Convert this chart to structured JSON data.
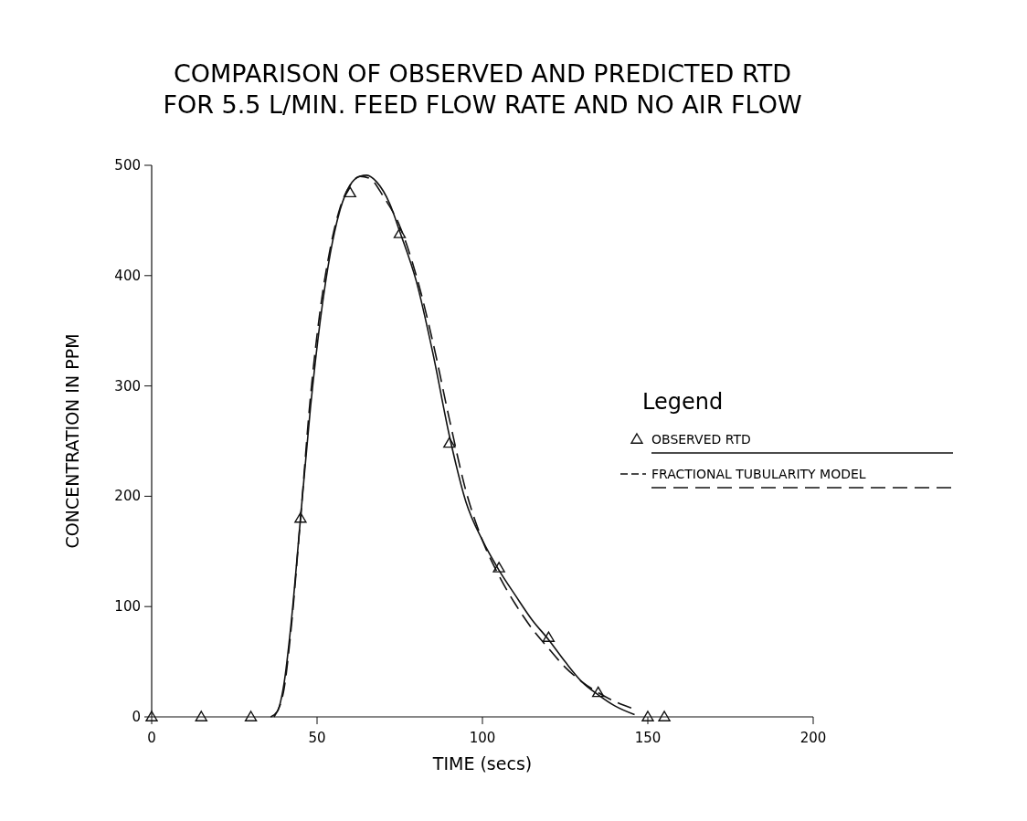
{
  "chart_data": {
    "type": "line",
    "title": "COMPARISON OF OBSERVED AND PREDICTED RTD\nFOR 5.5 L/MIN. FEED FLOW RATE AND NO AIR FLOW",
    "xlabel": "TIME (secs)",
    "ylabel": "CONCENTRATION IN PPM",
    "legend_title": "Legend",
    "legend": "right",
    "xlim": [
      0,
      200
    ],
    "ylim": [
      0,
      500
    ],
    "xticks": [
      0,
      50,
      100,
      150,
      200
    ],
    "yticks": [
      0,
      100,
      200,
      300,
      400,
      500
    ],
    "grid": false,
    "series": [
      {
        "type": "scatter",
        "marker": "triangle",
        "color": "#111111",
        "x": [
          0,
          15,
          30,
          45,
          60,
          75,
          90,
          105,
          120,
          135,
          150,
          155
        ],
        "values": [
          0,
          0,
          0,
          180,
          475,
          438,
          248,
          135,
          72,
          22,
          0,
          0
        ]
      },
      {
        "name": "OBSERVED RTD",
        "type": "line",
        "line_style": "solid",
        "marker": "none",
        "color": "#111111",
        "x": [
          36,
          38,
          40,
          42,
          45,
          48,
          51,
          54,
          57,
          60,
          63,
          65,
          68,
          72,
          75,
          80,
          85,
          90,
          95,
          100,
          105,
          110,
          115,
          120,
          125,
          130,
          135,
          140,
          146
        ],
        "values": [
          0,
          5,
          30,
          80,
          180,
          280,
          360,
          420,
          460,
          482,
          490,
          491,
          485,
          465,
          440,
          395,
          330,
          255,
          195,
          160,
          133,
          110,
          88,
          70,
          50,
          32,
          20,
          10,
          2
        ]
      },
      {
        "name": "FRACTIONAL TUBULARITY MODEL",
        "type": "line",
        "line_style": "dashed",
        "marker": "none",
        "color": "#111111",
        "x": [
          37,
          40,
          42,
          45,
          48,
          51,
          54,
          57,
          60,
          63,
          66,
          70,
          75,
          80,
          85,
          90,
          95,
          100,
          105,
          110,
          115,
          120,
          125,
          130,
          135,
          140,
          145
        ],
        "values": [
          0,
          25,
          75,
          180,
          290,
          370,
          425,
          462,
          482,
          490,
          488,
          472,
          445,
          400,
          340,
          270,
          205,
          160,
          128,
          102,
          80,
          62,
          45,
          32,
          22,
          14,
          8
        ]
      }
    ]
  }
}
